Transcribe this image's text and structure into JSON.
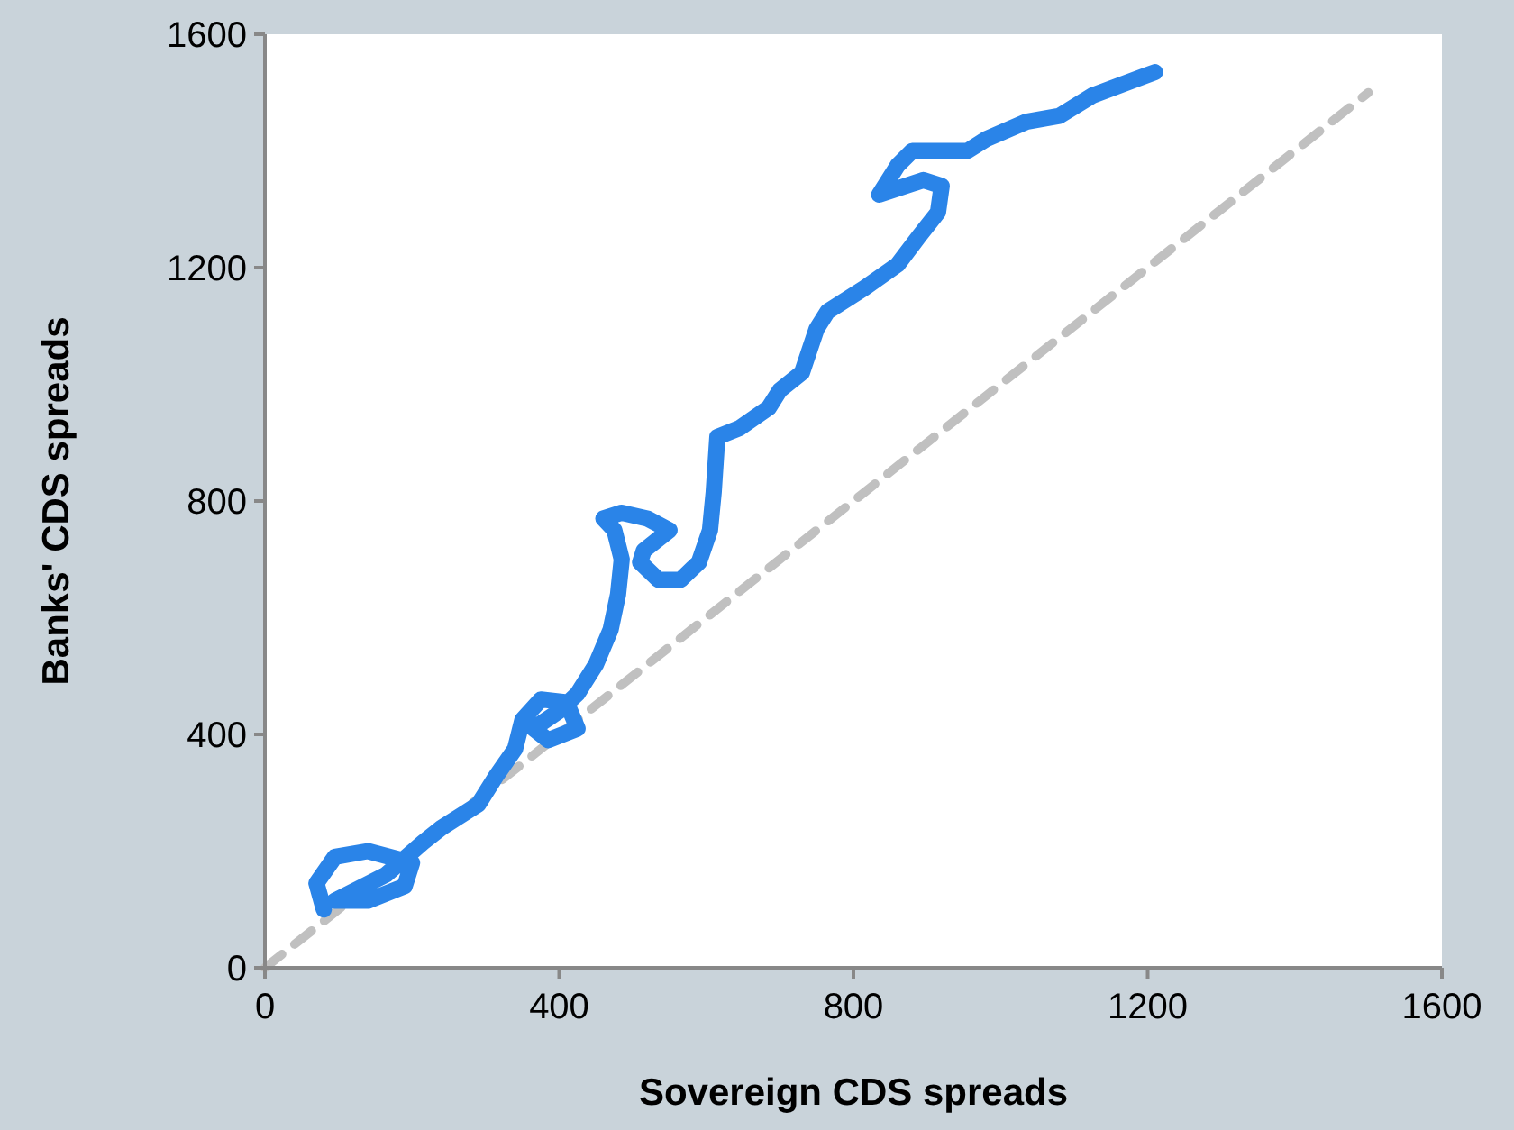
{
  "chart_data": {
    "type": "line",
    "xlabel": "Sovereign CDS spreads",
    "ylabel": "Banks' CDS spreads",
    "xlim": [
      0,
      1600
    ],
    "ylim": [
      0,
      1600
    ],
    "xticks": [
      0,
      400,
      800,
      1200,
      1600
    ],
    "yticks": [
      0,
      400,
      800,
      1200,
      1600
    ],
    "marker": "none",
    "series": [
      {
        "color": "#2a84e8",
        "x": [
          80,
          70,
          95,
          140,
          200,
          190,
          140,
          95,
          165,
          215,
          240,
          290,
          315,
          340,
          350,
          375,
          410,
          425,
          385,
          365,
          400,
          425,
          450,
          470,
          480,
          485,
          475,
          460,
          485,
          520,
          550,
          515,
          510,
          535,
          565,
          590,
          605,
          610,
          615,
          645,
          685,
          700,
          730,
          750,
          765,
          815,
          860,
          890,
          915,
          920,
          895,
          835,
          860,
          880,
          955,
          980,
          1035,
          1080,
          1125,
          1210
        ],
        "values": [
          100,
          145,
          190,
          200,
          180,
          140,
          115,
          115,
          160,
          215,
          240,
          280,
          330,
          375,
          425,
          460,
          455,
          410,
          390,
          410,
          440,
          470,
          520,
          580,
          640,
          700,
          750,
          770,
          780,
          770,
          750,
          715,
          695,
          665,
          665,
          695,
          750,
          815,
          910,
          925,
          960,
          990,
          1020,
          1095,
          1125,
          1165,
          1205,
          1255,
          1295,
          1340,
          1350,
          1325,
          1375,
          1400,
          1400,
          1420,
          1450,
          1460,
          1495,
          1535
        ]
      },
      {
        "color": "#c0c0c0",
        "line_style": "dashed",
        "x": [
          0,
          1500
        ],
        "values": [
          0,
          1500
        ]
      }
    ]
  }
}
